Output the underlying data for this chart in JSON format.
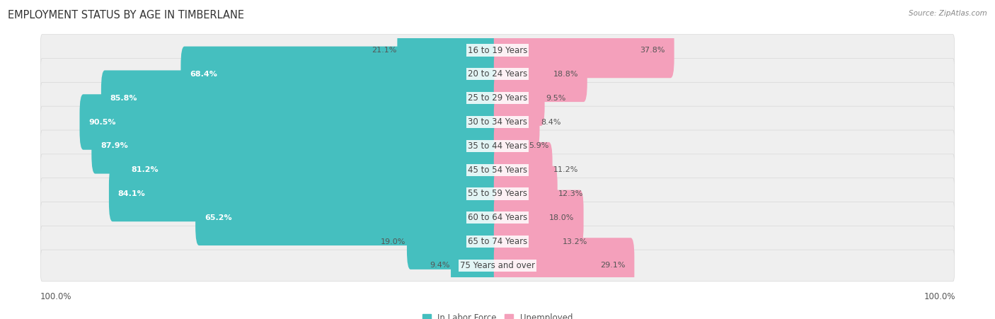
{
  "title": "EMPLOYMENT STATUS BY AGE IN TIMBERLANE",
  "source": "Source: ZipAtlas.com",
  "categories": [
    "16 to 19 Years",
    "20 to 24 Years",
    "25 to 29 Years",
    "30 to 34 Years",
    "35 to 44 Years",
    "45 to 54 Years",
    "55 to 59 Years",
    "60 to 64 Years",
    "65 to 74 Years",
    "75 Years and over"
  ],
  "labor_force": [
    21.1,
    68.4,
    85.8,
    90.5,
    87.9,
    81.2,
    84.1,
    65.2,
    19.0,
    9.4
  ],
  "unemployed": [
    37.8,
    18.8,
    9.5,
    8.4,
    5.9,
    11.2,
    12.3,
    18.0,
    13.2,
    29.1
  ],
  "labor_color": "#45bfbf",
  "unemployed_color": "#f4a0bb",
  "row_bg_color": "#efefef",
  "row_border_color": "#d8d8d8",
  "max_val": 100.0,
  "title_fontsize": 10.5,
  "label_fontsize": 8.5,
  "value_fontsize": 8.0,
  "tick_fontsize": 8.5,
  "source_fontsize": 7.5
}
